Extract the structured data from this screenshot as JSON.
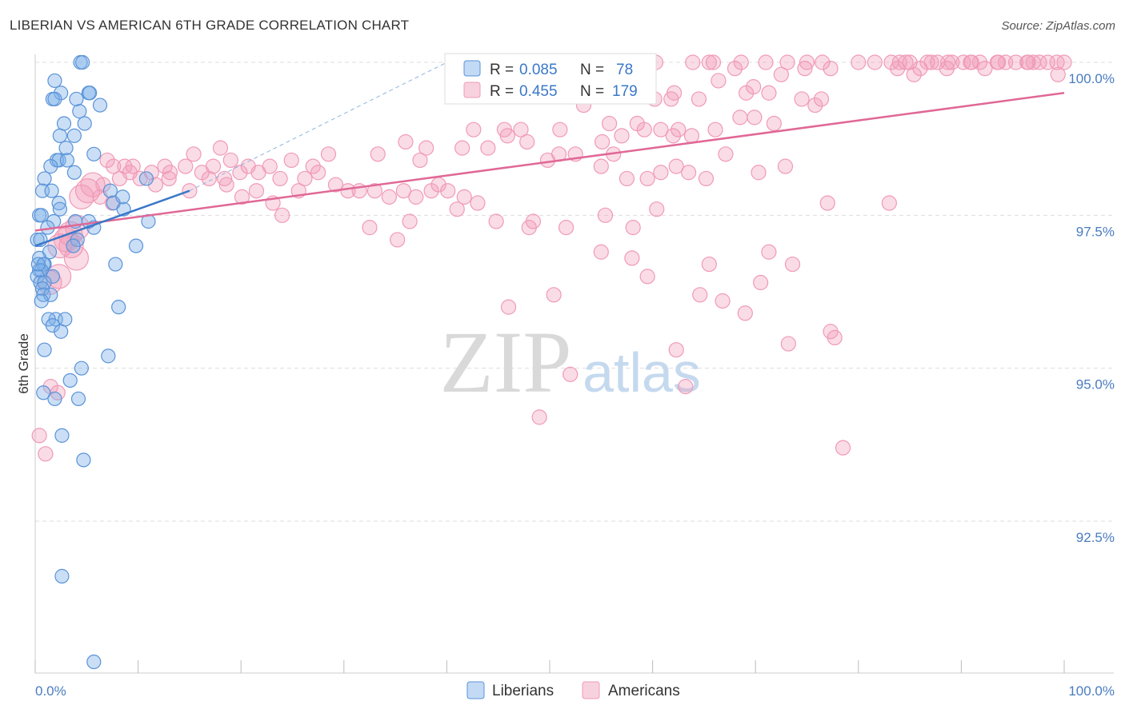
{
  "header": {
    "title": "LIBERIAN VS AMERICAN 6TH GRADE CORRELATION CHART",
    "source": "Source: ZipAtlas.com"
  },
  "watermark": {
    "zip": "ZIP",
    "atlas": "atlas"
  },
  "colors": {
    "blue": "#7aaee8",
    "blue_line": "#3a78c8",
    "pink": "#f09ab8",
    "pink_line": "#e06896",
    "axis_label": "#4a7cc0",
    "grid": "#dddddd"
  },
  "legend": {
    "r_label": "R =",
    "n_label": "N =",
    "blue_r": "0.085",
    "blue_n": "78",
    "pink_r": "0.455",
    "pink_n": "179"
  },
  "chart_data": {
    "type": "scatter",
    "title": "LIBERIAN VS AMERICAN 6TH GRADE CORRELATION CHART",
    "xlabel": "",
    "ylabel": "6th Grade",
    "xlim": [
      0,
      100
    ],
    "ylim": [
      90.2,
      100.3
    ],
    "x_tick_labels": [
      "0.0%",
      "100.0%"
    ],
    "y_ticks": [
      {
        "value": 100.0,
        "label": "100.0%"
      },
      {
        "value": 97.5,
        "label": "97.5%"
      },
      {
        "value": 95.0,
        "label": "95.0%"
      },
      {
        "value": 92.5,
        "label": "92.5%"
      }
    ],
    "legend_position": "top-center",
    "series": [
      {
        "name": "Liberians",
        "color": "#7aaee8",
        "r": 0.085,
        "n": 78,
        "trend": {
          "x0": 0,
          "y0": 97.0,
          "x1": 15,
          "y1": 97.9
        },
        "trend_extension": {
          "x0": 15,
          "y0": 97.9,
          "x1": 40,
          "y1": 100.0
        },
        "points": [
          [
            4.4,
            100.0
          ],
          [
            4.6,
            100.0
          ],
          [
            1.9,
            99.7
          ],
          [
            2.5,
            99.5
          ],
          [
            5.2,
            99.5
          ],
          [
            5.3,
            99.5
          ],
          [
            1.7,
            99.4
          ],
          [
            1.9,
            99.4
          ],
          [
            4.0,
            99.4
          ],
          [
            6.3,
            99.3
          ],
          [
            4.3,
            99.2
          ],
          [
            2.8,
            99.0
          ],
          [
            4.8,
            99.0
          ],
          [
            3.8,
            98.8
          ],
          [
            2.4,
            98.8
          ],
          [
            3.0,
            98.6
          ],
          [
            5.7,
            98.5
          ],
          [
            2.1,
            98.4
          ],
          [
            2.3,
            98.4
          ],
          [
            3.1,
            98.4
          ],
          [
            1.5,
            98.3
          ],
          [
            3.8,
            98.2
          ],
          [
            0.9,
            98.1
          ],
          [
            10.8,
            98.1
          ],
          [
            0.7,
            97.9
          ],
          [
            1.6,
            97.9
          ],
          [
            7.3,
            97.9
          ],
          [
            7.6,
            97.7
          ],
          [
            2.3,
            97.7
          ],
          [
            2.4,
            97.6
          ],
          [
            8.6,
            97.6
          ],
          [
            0.4,
            97.5
          ],
          [
            0.6,
            97.5
          ],
          [
            1.8,
            97.4
          ],
          [
            3.9,
            97.4
          ],
          [
            11.0,
            97.4
          ],
          [
            1.2,
            97.3
          ],
          [
            5.7,
            97.3
          ],
          [
            0.2,
            97.1
          ],
          [
            0.5,
            97.1
          ],
          [
            4.1,
            97.1
          ],
          [
            3.7,
            97.0
          ],
          [
            9.8,
            97.0
          ],
          [
            1.4,
            96.9
          ],
          [
            0.4,
            96.8
          ],
          [
            0.9,
            96.7
          ],
          [
            0.8,
            96.7
          ],
          [
            7.8,
            96.7
          ],
          [
            0.4,
            96.6
          ],
          [
            0.6,
            96.6
          ],
          [
            1.7,
            96.5
          ],
          [
            0.2,
            96.5
          ],
          [
            0.5,
            96.4
          ],
          [
            0.9,
            96.4
          ],
          [
            0.7,
            96.3
          ],
          [
            0.8,
            96.2
          ],
          [
            1.5,
            96.2
          ],
          [
            0.6,
            96.1
          ],
          [
            8.1,
            96.0
          ],
          [
            2.0,
            95.8
          ],
          [
            2.9,
            95.8
          ],
          [
            1.3,
            95.8
          ],
          [
            1.7,
            95.7
          ],
          [
            2.5,
            95.6
          ],
          [
            0.9,
            95.3
          ],
          [
            7.1,
            95.2
          ],
          [
            4.5,
            95.0
          ],
          [
            3.4,
            94.8
          ],
          [
            0.8,
            94.6
          ],
          [
            1.9,
            94.5
          ],
          [
            4.2,
            94.5
          ],
          [
            2.6,
            93.9
          ],
          [
            4.7,
            93.5
          ],
          [
            2.6,
            91.6
          ],
          [
            5.7,
            90.2
          ],
          [
            8.5,
            97.8
          ],
          [
            5.2,
            97.4
          ],
          [
            0.3,
            96.7
          ]
        ]
      },
      {
        "name": "Americans",
        "color": "#f09ab8",
        "r": 0.455,
        "n": 179,
        "trend": {
          "x0": 0,
          "y0": 97.25,
          "x1": 100,
          "y1": 99.5
        },
        "points": [
          [
            59.0,
            100.0
          ],
          [
            59.6,
            100.0
          ],
          [
            63.9,
            100.0
          ],
          [
            65.5,
            100.0
          ],
          [
            65.9,
            100.0
          ],
          [
            68.6,
            100.0
          ],
          [
            73.1,
            100.0
          ],
          [
            80.0,
            100.0
          ],
          [
            81.6,
            100.0
          ],
          [
            83.2,
            100.0
          ],
          [
            86.7,
            100.0
          ],
          [
            87.7,
            100.0
          ],
          [
            89.1,
            100.0
          ],
          [
            90.2,
            100.0
          ],
          [
            90.9,
            100.0
          ],
          [
            91.8,
            100.0
          ],
          [
            93.5,
            100.0
          ],
          [
            94.3,
            100.0
          ],
          [
            95.3,
            100.0
          ],
          [
            96.4,
            100.0
          ],
          [
            97.6,
            100.0
          ],
          [
            98.4,
            100.0
          ],
          [
            99.3,
            100.0
          ],
          [
            100.0,
            100.0
          ],
          [
            60.3,
            100.0
          ],
          [
            83.8,
            99.9
          ],
          [
            84.0,
            100.0
          ],
          [
            85.0,
            100.0
          ],
          [
            88.7,
            100.0
          ],
          [
            91.0,
            100.0
          ],
          [
            96.5,
            100.0
          ],
          [
            71.0,
            100.0
          ],
          [
            75.0,
            100.0
          ],
          [
            84.6,
            100.0
          ],
          [
            87.1,
            100.0
          ],
          [
            93.6,
            100.0
          ],
          [
            97.0,
            100.0
          ],
          [
            52.0,
            100.0
          ],
          [
            53.0,
            100.0
          ],
          [
            88.6,
            99.9
          ],
          [
            77.3,
            99.9
          ],
          [
            92.3,
            99.9
          ],
          [
            86.0,
            99.9
          ],
          [
            76.5,
            100.0
          ],
          [
            68.0,
            99.9
          ],
          [
            74.8,
            99.9
          ],
          [
            99.4,
            99.8
          ],
          [
            85.4,
            99.8
          ],
          [
            72.5,
            99.8
          ],
          [
            66.4,
            99.7
          ],
          [
            69.8,
            99.6
          ],
          [
            71.3,
            99.5
          ],
          [
            74.5,
            99.4
          ],
          [
            61.8,
            99.4
          ],
          [
            62.1,
            99.5
          ],
          [
            60.2,
            99.4
          ],
          [
            69.1,
            99.5
          ],
          [
            64.5,
            99.4
          ],
          [
            75.8,
            99.3
          ],
          [
            76.4,
            99.4
          ],
          [
            53.3,
            99.3
          ],
          [
            55.8,
            99.0
          ],
          [
            58.5,
            99.0
          ],
          [
            62.0,
            98.8
          ],
          [
            62.5,
            98.9
          ],
          [
            63.8,
            98.8
          ],
          [
            66.1,
            98.9
          ],
          [
            68.5,
            99.1
          ],
          [
            69.9,
            99.1
          ],
          [
            71.8,
            99.0
          ],
          [
            42.6,
            98.9
          ],
          [
            45.6,
            98.9
          ],
          [
            47.2,
            98.9
          ],
          [
            51.0,
            98.9
          ],
          [
            57.0,
            98.8
          ],
          [
            59.2,
            98.9
          ],
          [
            60.8,
            98.9
          ],
          [
            55.1,
            98.7
          ],
          [
            44.0,
            98.6
          ],
          [
            41.5,
            98.6
          ],
          [
            38.0,
            98.6
          ],
          [
            36.0,
            98.7
          ],
          [
            33.3,
            98.5
          ],
          [
            37.4,
            98.4
          ],
          [
            45.9,
            98.8
          ],
          [
            47.8,
            98.7
          ],
          [
            50.9,
            98.5
          ],
          [
            49.8,
            98.4
          ],
          [
            52.5,
            98.5
          ],
          [
            56.2,
            98.5
          ],
          [
            55.0,
            98.3
          ],
          [
            57.5,
            98.1
          ],
          [
            59.5,
            98.1
          ],
          [
            60.8,
            98.2
          ],
          [
            62.3,
            98.3
          ],
          [
            63.5,
            98.2
          ],
          [
            65.2,
            98.1
          ],
          [
            67.1,
            98.5
          ],
          [
            70.3,
            98.2
          ],
          [
            72.9,
            98.3
          ],
          [
            28.5,
            98.5
          ],
          [
            24.9,
            98.4
          ],
          [
            22.8,
            98.3
          ],
          [
            20.7,
            98.3
          ],
          [
            18.0,
            98.6
          ],
          [
            19.0,
            98.4
          ],
          [
            15.4,
            98.5
          ],
          [
            14.6,
            98.3
          ],
          [
            13.1,
            98.2
          ],
          [
            12.6,
            98.3
          ],
          [
            11.3,
            98.2
          ],
          [
            9.5,
            98.3
          ],
          [
            9.2,
            98.2
          ],
          [
            8.2,
            98.1
          ],
          [
            7.6,
            98.3
          ],
          [
            7.0,
            98.4
          ],
          [
            8.7,
            98.3
          ],
          [
            10.2,
            98.1
          ],
          [
            11.7,
            98.0
          ],
          [
            16.2,
            98.2
          ],
          [
            17.3,
            98.3
          ],
          [
            18.4,
            98.1
          ],
          [
            19.9,
            98.2
          ],
          [
            21.7,
            98.2
          ],
          [
            23.8,
            98.1
          ],
          [
            26.2,
            98.1
          ],
          [
            27.5,
            98.2
          ],
          [
            29.2,
            98.0
          ],
          [
            30.4,
            97.9
          ],
          [
            31.5,
            97.9
          ],
          [
            33.0,
            97.9
          ],
          [
            34.4,
            97.8
          ],
          [
            35.8,
            97.9
          ],
          [
            37.0,
            97.8
          ],
          [
            38.5,
            97.9
          ],
          [
            40.1,
            97.9
          ],
          [
            41.7,
            97.8
          ],
          [
            43.0,
            97.7
          ],
          [
            39.2,
            98.0
          ],
          [
            27.0,
            98.3
          ],
          [
            25.6,
            97.9
          ],
          [
            23.1,
            97.7
          ],
          [
            21.5,
            97.9
          ],
          [
            20.1,
            97.8
          ],
          [
            18.6,
            98.0
          ],
          [
            16.9,
            98.1
          ],
          [
            15.0,
            97.9
          ],
          [
            13.0,
            98.1
          ],
          [
            6.6,
            98.0
          ],
          [
            5.6,
            98.0
          ],
          [
            5.1,
            97.9
          ],
          [
            4.5,
            97.8
          ],
          [
            6.3,
            97.8
          ],
          [
            7.5,
            97.7
          ],
          [
            48.4,
            97.4
          ],
          [
            51.6,
            97.3
          ],
          [
            55.4,
            97.5
          ],
          [
            58.1,
            97.3
          ],
          [
            60.4,
            97.6
          ],
          [
            44.8,
            97.4
          ],
          [
            41.0,
            97.6
          ],
          [
            36.4,
            97.4
          ],
          [
            32.5,
            97.3
          ],
          [
            24.0,
            97.5
          ],
          [
            35.2,
            97.1
          ],
          [
            3.0,
            97.1
          ],
          [
            3.4,
            97.2
          ],
          [
            4.1,
            97.3
          ],
          [
            3.5,
            97.0
          ],
          [
            2.4,
            97.0
          ],
          [
            4.0,
            96.8
          ],
          [
            2.3,
            96.5
          ],
          [
            1.4,
            96.4
          ],
          [
            71.3,
            96.9
          ],
          [
            73.6,
            96.7
          ],
          [
            55.0,
            96.9
          ],
          [
            58.0,
            96.8
          ],
          [
            65.5,
            96.7
          ],
          [
            70.5,
            96.4
          ],
          [
            59.5,
            96.5
          ],
          [
            46.0,
            96.0
          ],
          [
            50.4,
            96.2
          ],
          [
            64.6,
            96.2
          ],
          [
            66.8,
            96.1
          ],
          [
            69.0,
            95.9
          ],
          [
            77.7,
            95.5
          ],
          [
            73.2,
            95.4
          ],
          [
            77.3,
            95.6
          ],
          [
            52.0,
            94.9
          ],
          [
            62.3,
            95.3
          ],
          [
            49.0,
            94.2
          ],
          [
            63.2,
            94.7
          ],
          [
            78.5,
            93.7
          ],
          [
            0.4,
            93.9
          ],
          [
            1.0,
            93.6
          ],
          [
            1.5,
            94.7
          ],
          [
            2.2,
            94.6
          ],
          [
            83.0,
            97.7
          ],
          [
            77.0,
            97.7
          ],
          [
            48.0,
            97.3
          ]
        ]
      }
    ]
  },
  "bottom_legend": {
    "liberians": "Liberians",
    "americans": "Americans"
  }
}
